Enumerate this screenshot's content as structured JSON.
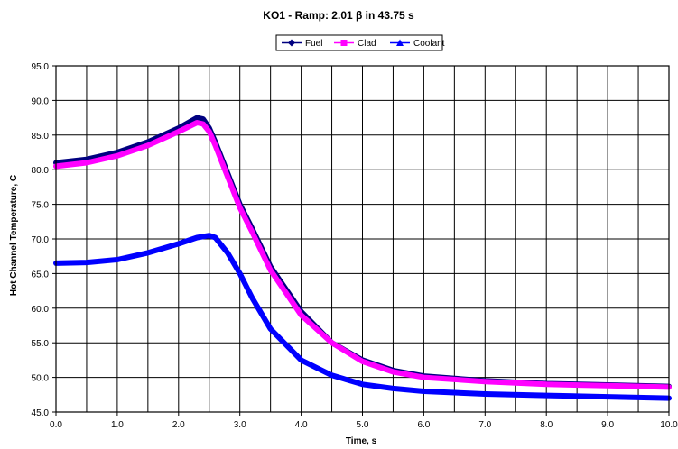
{
  "chart_data": {
    "type": "line",
    "title": "KO1 - Ramp: 2.01 β in 43.75 s",
    "xlabel": "Time, s",
    "ylabel": "Hot Channel Temperature, C",
    "xlim": [
      0,
      10
    ],
    "ylim": [
      45,
      95
    ],
    "x_ticks": [
      "0.0",
      "1.0",
      "2.0",
      "3.0",
      "4.0",
      "5.0",
      "6.0",
      "7.0",
      "8.0",
      "9.0",
      "10.0"
    ],
    "y_ticks": [
      "45.0",
      "50.0",
      "55.0",
      "60.0",
      "65.0",
      "70.0",
      "75.0",
      "80.0",
      "85.0",
      "90.0",
      "95.0"
    ],
    "grid": true,
    "x_minor_step": 0.5,
    "legend_position": "top-center",
    "series": [
      {
        "name": "Fuel",
        "color": "#000080",
        "marker": "diamond",
        "x": [
          0,
          0.5,
          1.0,
          1.5,
          2.0,
          2.3,
          2.4,
          2.5,
          2.6,
          2.8,
          3.0,
          3.2,
          3.5,
          4.0,
          4.5,
          5.0,
          5.5,
          6.0,
          7.0,
          8.0,
          9.0,
          10.0
        ],
        "y": [
          81.0,
          81.5,
          82.5,
          84.0,
          86.0,
          87.5,
          87.3,
          86.0,
          84.0,
          79.5,
          75.0,
          71.5,
          66.0,
          59.5,
          55.0,
          52.5,
          51.0,
          50.2,
          49.5,
          49.1,
          48.9,
          48.7
        ]
      },
      {
        "name": "Clad",
        "color": "#ff00ff",
        "marker": "square",
        "x": [
          0,
          0.5,
          1.0,
          1.5,
          2.0,
          2.3,
          2.4,
          2.5,
          2.6,
          2.8,
          3.0,
          3.2,
          3.5,
          4.0,
          4.5,
          5.0,
          5.5,
          6.0,
          7.0,
          8.0,
          9.0,
          10.0
        ],
        "y": [
          80.5,
          81.0,
          82.0,
          83.5,
          85.5,
          86.8,
          86.6,
          85.5,
          83.5,
          79.0,
          74.5,
          71.0,
          65.5,
          59.0,
          55.0,
          52.3,
          50.8,
          50.0,
          49.4,
          49.0,
          48.8,
          48.6
        ]
      },
      {
        "name": "Coolant",
        "color": "#0000ff",
        "marker": "triangle",
        "x": [
          0,
          0.5,
          1.0,
          1.5,
          2.0,
          2.3,
          2.5,
          2.6,
          2.8,
          3.0,
          3.2,
          3.5,
          4.0,
          4.5,
          5.0,
          5.5,
          6.0,
          7.0,
          8.0,
          9.0,
          10.0
        ],
        "y": [
          66.5,
          66.6,
          67.0,
          68.0,
          69.3,
          70.2,
          70.5,
          70.2,
          68.0,
          65.0,
          61.5,
          57.0,
          52.5,
          50.3,
          49.0,
          48.4,
          48.0,
          47.6,
          47.4,
          47.2,
          47.0
        ]
      }
    ]
  }
}
